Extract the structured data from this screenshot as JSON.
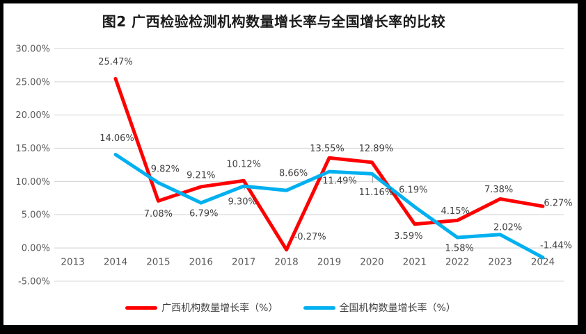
{
  "chart_data": {
    "type": "line",
    "title": "图2 广西检验检测机构数量增长率与全国增长率的比较",
    "categories": [
      "2013",
      "2014",
      "2015",
      "2016",
      "2017",
      "2018",
      "2019",
      "2020",
      "2021",
      "2022",
      "2023",
      "2024"
    ],
    "start_category_index": 1,
    "y_axis": {
      "min": -5,
      "max": 30,
      "step": 5,
      "tick_labels": [
        "30.00%",
        "25.00%",
        "20.00%",
        "15.00%",
        "10.00%",
        "5.00%",
        "0.00%",
        "-5.00%"
      ]
    },
    "grid": true,
    "legend_position": "bottom",
    "series": [
      {
        "name": "广西机构数量增长率（%）",
        "color": "#FF0000",
        "values": [
          25.47,
          7.08,
          9.21,
          10.12,
          -0.27,
          13.55,
          12.89,
          3.59,
          4.15,
          7.38,
          6.27
        ],
        "labels": [
          "25.47%",
          "7.08%",
          "9.21%",
          "10.12%",
          "-0.27%",
          "13.55%",
          "12.89%",
          "3.59%",
          "4.15%",
          "7.38%",
          "6.27%"
        ],
        "label_offsets": [
          [
            0,
            -25
          ],
          [
            0,
            18
          ],
          [
            0,
            -17
          ],
          [
            0,
            -24
          ],
          [
            34,
            -19
          ],
          [
            -3,
            -14
          ],
          [
            6,
            -20
          ],
          [
            -9,
            17
          ],
          [
            -3,
            -14
          ],
          [
            -2,
            -14
          ],
          [
            22,
            -5
          ]
        ]
      },
      {
        "name": "全国机构数量增长率（%）",
        "color": "#00B0F0",
        "values": [
          14.06,
          9.82,
          6.79,
          9.3,
          8.66,
          11.49,
          11.16,
          6.19,
          1.58,
          2.02,
          -1.44
        ],
        "labels": [
          "14.06%",
          "9.82%",
          "6.79%",
          "9.30%",
          "8.66%",
          "11.49%",
          "11.16%",
          "6.19%",
          "1.58%",
          "2.02%",
          "-1.44%"
        ],
        "label_offsets": [
          [
            2,
            -24
          ],
          [
            10,
            -20
          ],
          [
            4,
            15
          ],
          [
            -2,
            22
          ],
          [
            10,
            -25
          ],
          [
            15,
            13
          ],
          [
            6,
            26
          ],
          [
            -2,
            -25
          ],
          [
            3,
            15
          ],
          [
            11,
            -11
          ],
          [
            19,
            -18
          ]
        ]
      }
    ],
    "leader_lines": [
      {
        "series": 1,
        "index": 3,
        "dy1": -7,
        "dy2": 5
      },
      {
        "series": 1,
        "index": 6,
        "dy1": 1,
        "dy2": 13
      }
    ],
    "colors": {
      "gridline": "#D9D9D9",
      "axis_label": "#595959",
      "data_label": "#404040",
      "leader": "#A6A6A6",
      "title": "#1A1A1A",
      "frame_border": "#000000",
      "background": "#FFFFFF"
    }
  }
}
